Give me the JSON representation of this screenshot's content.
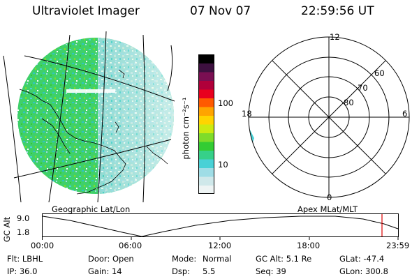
{
  "header": {
    "title": "Ultraviolet Imager",
    "date": "07 Nov 07",
    "time": "22:59:56 UT"
  },
  "geo_panel": {
    "label": "Geographic Lat/Lon"
  },
  "colorbar": {
    "unit_label": "photon cm⁻²s⁻¹",
    "tick_high": "100",
    "tick_low": "10",
    "colors": [
      "#eef4f4",
      "#cfe8ea",
      "#9fdde6",
      "#49d1d6",
      "#36d089",
      "#33cc33",
      "#7fdc2a",
      "#ccea11",
      "#ffd400",
      "#ffa400",
      "#ff5a00",
      "#e8001e",
      "#b0003a",
      "#7a0f52",
      "#3d103f",
      "#000000"
    ]
  },
  "polar_panel": {
    "label": "Apex MLat/MLT",
    "mlt_top": "12",
    "mlt_left": "18",
    "mlt_right": "6",
    "mlt_bottom": "0",
    "lat_60": "60",
    "lat_70": "70",
    "lat_80": "80"
  },
  "altitude_plot": {
    "axis_title": "GC Alt",
    "y_max": "9.0",
    "y_min": "1.8",
    "x_ticks": [
      "00:00",
      "06:00",
      "12:00",
      "18:00",
      "23:59"
    ],
    "trace_color": "#000000",
    "marker_color": "#dd0000"
  },
  "footer": {
    "row1": {
      "filter": "Flt: LBHL",
      "door": "Door: Open",
      "mode_key": "Mode:",
      "mode_val": "Normal",
      "gc_alt": "GC Alt: 5.1 Re",
      "glat": "GLat: -47.4"
    },
    "row2": {
      "ip": "IP: 36.0",
      "gain": "Gain: 14",
      "dsp_key": "Dsp:",
      "dsp_val": "5.5",
      "seq": "Seq: 39",
      "glon": "GLon: 300.8"
    }
  }
}
